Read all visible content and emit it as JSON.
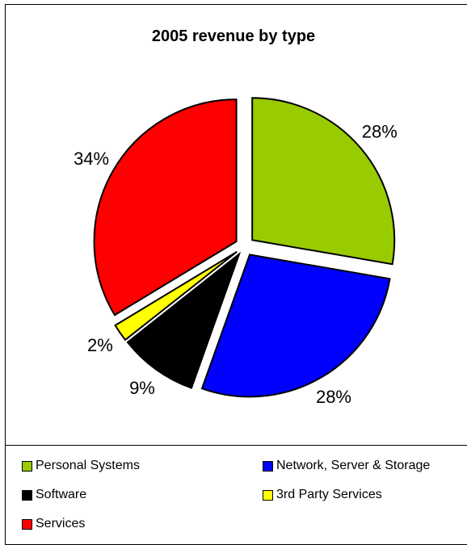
{
  "chart_data": {
    "type": "pie",
    "title": "2005 revenue by type",
    "categories": [
      "Personal Systems",
      "Network, Server & Storage",
      "Software",
      "3rd Party Services",
      "Services"
    ],
    "values": [
      28,
      28,
      9,
      2,
      34
    ],
    "labels": [
      "28%",
      "28%",
      "9%",
      "2%",
      "34%"
    ],
    "colors": [
      "#99cc00",
      "#0000ff",
      "#000000",
      "#ffff00",
      "#ff0000"
    ],
    "exploded": true,
    "start_angle": "12 o'clock, clockwise",
    "legend_position": "bottom"
  }
}
